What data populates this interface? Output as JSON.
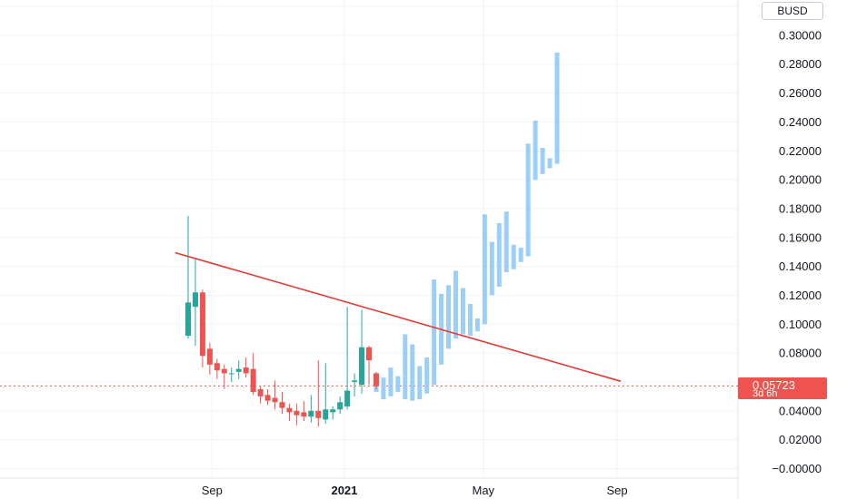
{
  "currency_label": "BUSD",
  "price_tag": {
    "price": "0.05723",
    "countdown": "3d 6h",
    "color": "#ef5350"
  },
  "colors": {
    "up": "#26a69a",
    "down": "#ef5350",
    "projection": "#90caf9",
    "trendline": "#e53935",
    "grid": "#f0f3fa",
    "price_line": "#ef5350"
  },
  "axis": {
    "y_ticks": [
      "0.30000",
      "0.28000",
      "0.26000",
      "0.24000",
      "0.22000",
      "0.20000",
      "0.18000",
      "0.16000",
      "0.14000",
      "0.12000",
      "0.10000",
      "0.08000",
      "0.04000",
      "0.02000",
      "−0.00000"
    ],
    "x_ticks": [
      {
        "label": "Sep",
        "bold": false
      },
      {
        "label": "2021",
        "bold": true
      },
      {
        "label": "May",
        "bold": false
      },
      {
        "label": "Sep",
        "bold": false
      }
    ]
  },
  "chart_data": {
    "type": "candlestick",
    "period": "weekly",
    "y_range": [
      -0.005,
      0.31
    ],
    "last_price": 0.05723,
    "candles": [
      {
        "o": 0.092,
        "h": 0.175,
        "l": 0.09,
        "c": 0.115
      },
      {
        "o": 0.112,
        "h": 0.146,
        "l": 0.085,
        "c": 0.122
      },
      {
        "o": 0.122,
        "h": 0.124,
        "l": 0.07,
        "c": 0.078
      },
      {
        "o": 0.083,
        "h": 0.087,
        "l": 0.065,
        "c": 0.072
      },
      {
        "o": 0.073,
        "h": 0.076,
        "l": 0.062,
        "c": 0.068
      },
      {
        "o": 0.069,
        "h": 0.072,
        "l": 0.055,
        "c": 0.066
      },
      {
        "o": 0.066,
        "h": 0.07,
        "l": 0.06,
        "c": 0.066
      },
      {
        "o": 0.067,
        "h": 0.075,
        "l": 0.062,
        "c": 0.069
      },
      {
        "o": 0.07,
        "h": 0.077,
        "l": 0.063,
        "c": 0.066
      },
      {
        "o": 0.069,
        "h": 0.08,
        "l": 0.051,
        "c": 0.053
      },
      {
        "o": 0.055,
        "h": 0.057,
        "l": 0.045,
        "c": 0.05
      },
      {
        "o": 0.051,
        "h": 0.055,
        "l": 0.044,
        "c": 0.047
      },
      {
        "o": 0.049,
        "h": 0.061,
        "l": 0.041,
        "c": 0.046
      },
      {
        "o": 0.046,
        "h": 0.053,
        "l": 0.038,
        "c": 0.042
      },
      {
        "o": 0.042,
        "h": 0.045,
        "l": 0.033,
        "c": 0.039
      },
      {
        "o": 0.04,
        "h": 0.045,
        "l": 0.03,
        "c": 0.037
      },
      {
        "o": 0.039,
        "h": 0.047,
        "l": 0.033,
        "c": 0.036
      },
      {
        "o": 0.036,
        "h": 0.051,
        "l": 0.032,
        "c": 0.04
      },
      {
        "o": 0.04,
        "h": 0.075,
        "l": 0.029,
        "c": 0.035
      },
      {
        "o": 0.034,
        "h": 0.073,
        "l": 0.031,
        "c": 0.041
      },
      {
        "o": 0.039,
        "h": 0.043,
        "l": 0.034,
        "c": 0.041
      },
      {
        "o": 0.041,
        "h": 0.05,
        "l": 0.038,
        "c": 0.046
      },
      {
        "o": 0.043,
        "h": 0.112,
        "l": 0.041,
        "c": 0.054
      },
      {
        "o": 0.06,
        "h": 0.066,
        "l": 0.05,
        "c": 0.061
      },
      {
        "o": 0.058,
        "h": 0.11,
        "l": 0.052,
        "c": 0.084
      },
      {
        "o": 0.084,
        "h": 0.085,
        "l": 0.058,
        "c": 0.075
      },
      {
        "o": 0.066,
        "h": 0.067,
        "l": 0.055,
        "c": 0.057
      }
    ],
    "projection": [
      {
        "lo": 0.053,
        "hi": 0.066
      },
      {
        "lo": 0.048,
        "hi": 0.063
      },
      {
        "lo": 0.05,
        "hi": 0.07
      },
      {
        "lo": 0.053,
        "hi": 0.064
      },
      {
        "lo": 0.048,
        "hi": 0.093
      },
      {
        "lo": 0.047,
        "hi": 0.086
      },
      {
        "lo": 0.048,
        "hi": 0.071
      },
      {
        "lo": 0.052,
        "hi": 0.077
      },
      {
        "lo": 0.058,
        "hi": 0.131
      },
      {
        "lo": 0.072,
        "hi": 0.121
      },
      {
        "lo": 0.083,
        "hi": 0.127
      },
      {
        "lo": 0.09,
        "hi": 0.137
      },
      {
        "lo": 0.093,
        "hi": 0.125
      },
      {
        "lo": 0.092,
        "hi": 0.114
      },
      {
        "lo": 0.095,
        "hi": 0.104
      },
      {
        "lo": 0.1,
        "hi": 0.176
      },
      {
        "lo": 0.12,
        "hi": 0.157
      },
      {
        "lo": 0.126,
        "hi": 0.17
      },
      {
        "lo": 0.136,
        "hi": 0.178
      },
      {
        "lo": 0.138,
        "hi": 0.155
      },
      {
        "lo": 0.143,
        "hi": 0.153
      },
      {
        "lo": 0.147,
        "hi": 0.225
      },
      {
        "lo": 0.2,
        "hi": 0.241
      },
      {
        "lo": 0.204,
        "hi": 0.222
      },
      {
        "lo": 0.208,
        "hi": 0.215
      },
      {
        "lo": 0.211,
        "hi": 0.288
      }
    ],
    "trendline": {
      "from": {
        "week": -1.8,
        "price": 0.1495
      },
      "to": {
        "week": 59.8,
        "price": 0.0605
      }
    }
  }
}
